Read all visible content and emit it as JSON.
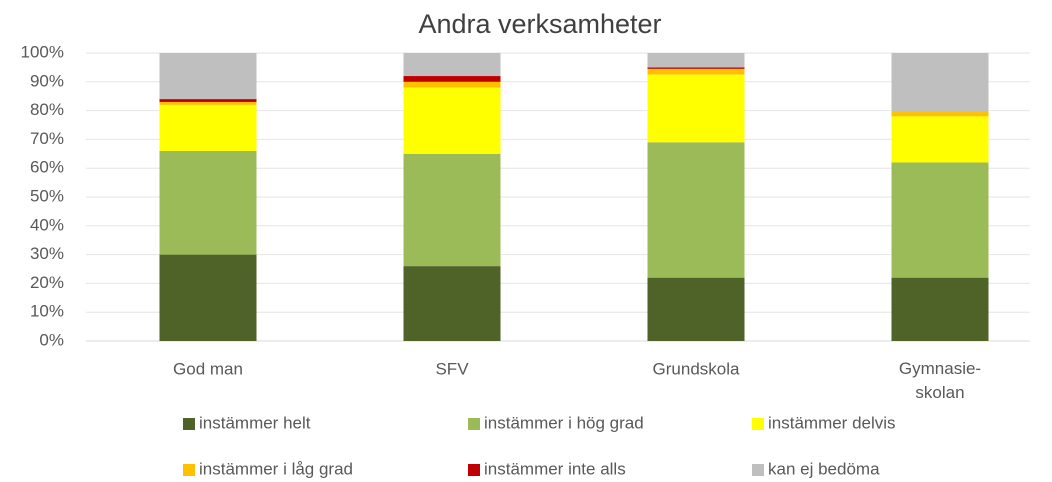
{
  "chart_data": {
    "type": "stacked_bar",
    "title": "Andra verksamheter",
    "categories": [
      "God man",
      "SFV",
      "Grundskola",
      "Gymnasie-skolan"
    ],
    "series": [
      {
        "name": "instämmer helt",
        "color": "#4f6228",
        "values": [
          30,
          26,
          22,
          22
        ]
      },
      {
        "name": "instämmer i hög grad",
        "color": "#9bbb59",
        "values": [
          36,
          39,
          47,
          40
        ]
      },
      {
        "name": "instämmer delvis",
        "color": "#ffff00",
        "values": [
          16,
          23,
          23.5,
          16
        ]
      },
      {
        "name": "instämmer i låg grad",
        "color": "#ffc000",
        "values": [
          1,
          2,
          2,
          1.5
        ]
      },
      {
        "name": "instämmer inte alls",
        "color": "#c00000",
        "values": [
          1,
          2,
          0.5,
          0
        ]
      },
      {
        "name": "kan ej bedöma",
        "color": "#bfbfbf",
        "values": [
          16,
          8,
          5,
          20.5
        ]
      }
    ],
    "ylim": [
      0,
      100
    ],
    "yticks": [
      {
        "value": 0,
        "label": "0%"
      },
      {
        "value": 10,
        "label": "10%"
      },
      {
        "value": 20,
        "label": "20%"
      },
      {
        "value": 30,
        "label": "30%"
      },
      {
        "value": 40,
        "label": "40%"
      },
      {
        "value": 50,
        "label": "50%"
      },
      {
        "value": 60,
        "label": "60%"
      },
      {
        "value": 70,
        "label": "70%"
      },
      {
        "value": 80,
        "label": "80%"
      },
      {
        "value": 90,
        "label": "90%"
      },
      {
        "value": 100,
        "label": "100%"
      }
    ],
    "grid": true
  }
}
